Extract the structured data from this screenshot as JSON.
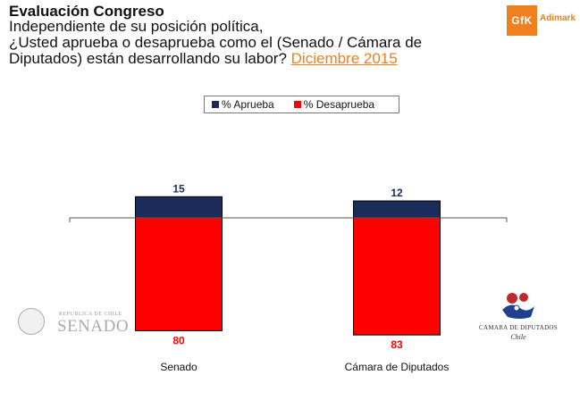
{
  "header": {
    "title": "Evaluación Congreso",
    "question_line1": "Independiente de su posición política,",
    "question_line2": "¿Usted aprueba o desaprueba como el (Senado / Cámara de",
    "question_line3": "Diputados) están desarrollando su labor?",
    "date": "Diciembre 2015"
  },
  "brand": {
    "box_text": "GfK",
    "name": "Adimark"
  },
  "logos": {
    "senado_small": "REPUBLICA DE CHILE",
    "senado_big": "SENADO",
    "camara_line1": "CAMARA DE DIPUTADOS",
    "camara_line2": "Chile"
  },
  "colors": {
    "aprueba": "#1b2b5a",
    "desaprueba": "#ff0000",
    "accent": "#f07f20"
  },
  "chart_data": {
    "type": "bar",
    "layout": "diverging-stacked",
    "categories": [
      "Senado",
      "Cámara de Diputados"
    ],
    "series": [
      {
        "name": "% Aprueba",
        "values": [
          15,
          12
        ],
        "direction": "up"
      },
      {
        "name": "% Desaprueba",
        "values": [
          80,
          83
        ],
        "direction": "down"
      }
    ],
    "legend": "top-center"
  }
}
